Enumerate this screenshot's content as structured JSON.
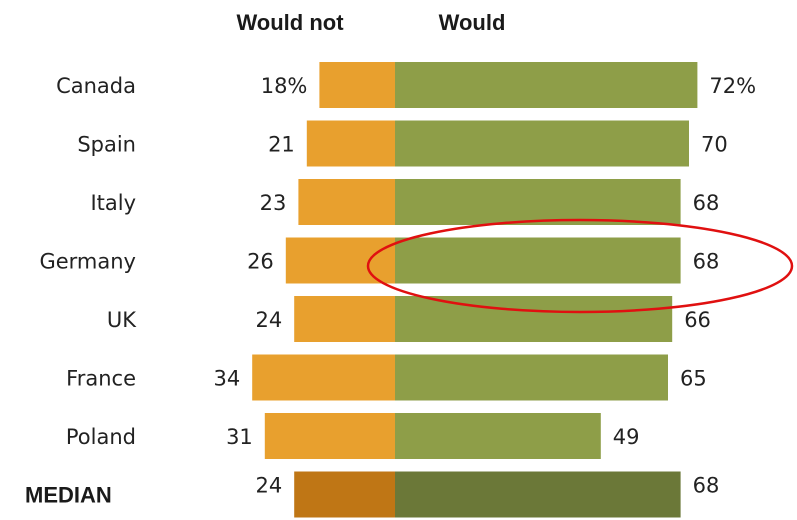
{
  "chart_data": {
    "type": "bar",
    "subtype": "diverging-stacked-horizontal",
    "legend": {
      "would_not": "Would not",
      "would": "Would"
    },
    "categories": [
      "Canada",
      "Spain",
      "Italy",
      "Germany",
      "UK",
      "France",
      "Poland",
      "MEDIAN"
    ],
    "would_not_labels": [
      "18%",
      "21",
      "23",
      "26",
      "24",
      "34",
      "31",
      "24"
    ],
    "would_labels": [
      "72%",
      "70",
      "68",
      "68",
      "66",
      "65",
      "49",
      "68"
    ],
    "series": [
      {
        "name": "Would not",
        "values": [
          18,
          21,
          23,
          26,
          24,
          34,
          31,
          24
        ]
      },
      {
        "name": "Would",
        "values": [
          72,
          70,
          68,
          68,
          66,
          65,
          49,
          68
        ]
      }
    ],
    "summary_row": "MEDIAN",
    "highlighted_category": "Germany",
    "highlight_style": "red ellipse around the Would bar",
    "grid": false
  },
  "colors": {
    "would_not": "#e8a02e",
    "would": "#8e9e48",
    "would_not_median": "#bf7615",
    "would_median": "#6b7838",
    "highlight": "#e01010"
  }
}
